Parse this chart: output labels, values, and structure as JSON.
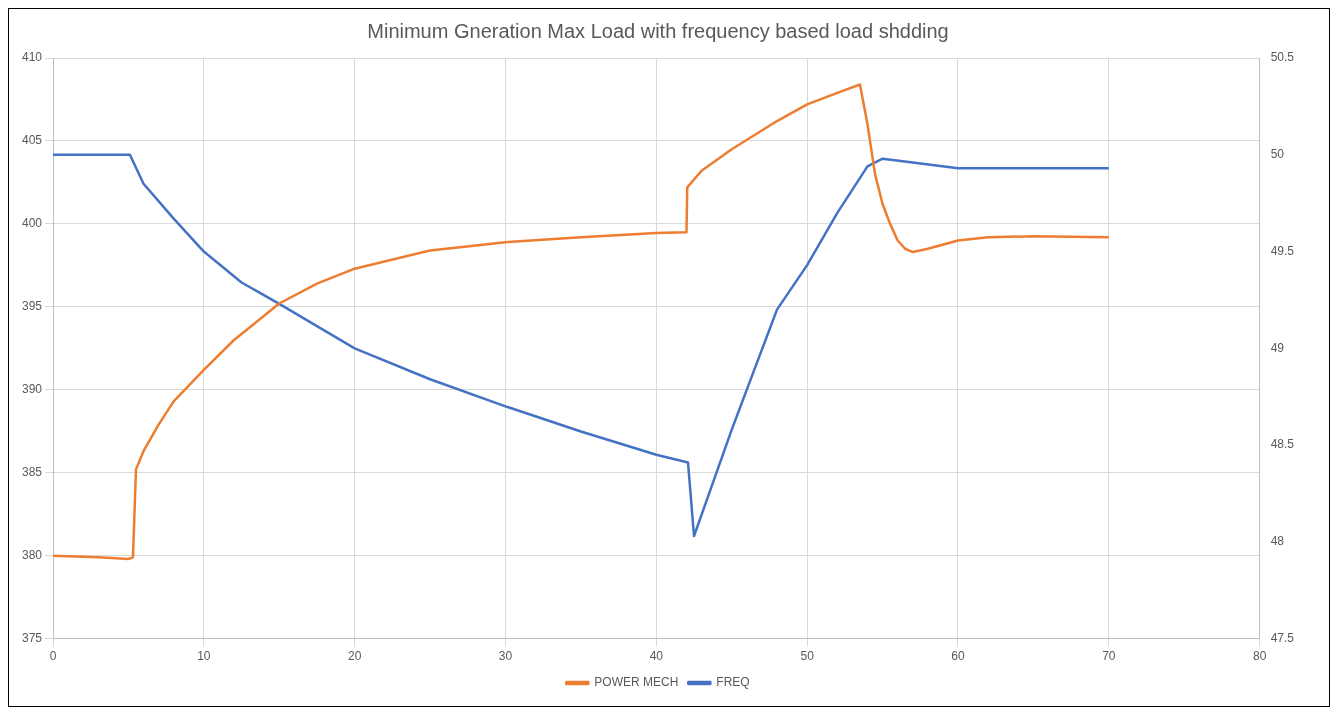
{
  "chart_data": {
    "type": "line",
    "title": "Minimum Gneration Max Load with frequency based load shdding",
    "xlim": [
      0,
      80
    ],
    "xticks": [
      0,
      10,
      20,
      30,
      40,
      50,
      60,
      70,
      80
    ],
    "ylim": [
      375,
      410
    ],
    "yticks": [
      375,
      380,
      385,
      390,
      395,
      400,
      405,
      410
    ],
    "y2lim": [
      47.5,
      50.5
    ],
    "y2ticks": [
      47.5,
      48,
      48.5,
      49,
      49.5,
      50,
      50.5
    ],
    "grid": true,
    "legend": "bottom",
    "marker": "none",
    "line_style": "solid",
    "series": [
      {
        "name": "POWER MECH",
        "color": "#ed7d31",
        "x": [
          0,
          3,
          5,
          5.3,
          5.5,
          6,
          7,
          8,
          10,
          12,
          15,
          17.5,
          20,
          25,
          30,
          35,
          40,
          42,
          42.05,
          43,
          45,
          48,
          50,
          52,
          53.5,
          54,
          54.5,
          55,
          55.5,
          56,
          56.5,
          57,
          58,
          60,
          62,
          65,
          70
        ],
        "values": [
          380,
          379.9,
          379.8,
          379.9,
          385.2,
          386.3,
          387.9,
          389.3,
          391.2,
          393.0,
          395.2,
          396.4,
          397.3,
          398.4,
          398.9,
          399.2,
          399.45,
          399.5,
          402.2,
          403.2,
          404.5,
          406.2,
          407.2,
          407.9,
          408.4,
          406,
          403,
          401.2,
          400,
          399,
          398.5,
          398.3,
          398.5,
          399,
          399.2,
          399.25,
          399.2
        ]
      },
      {
        "name": "FREQ",
        "color": "#4472c4",
        "axis": "y2",
        "x": [
          0,
          5.1,
          6,
          8,
          10,
          12.5,
          15,
          20,
          25,
          30,
          35,
          40,
          42.1,
          42.5,
          45,
          48,
          50,
          52,
          54,
          55,
          57,
          60,
          65,
          70
        ],
        "values": [
          50,
          50,
          49.85,
          49.67,
          49.5,
          49.34,
          49.23,
          49.0,
          48.84,
          48.7,
          48.57,
          48.45,
          48.41,
          48.03,
          48.58,
          49.2,
          49.43,
          49.7,
          49.94,
          49.98,
          49.96,
          49.93,
          49.93,
          49.93
        ]
      }
    ]
  }
}
